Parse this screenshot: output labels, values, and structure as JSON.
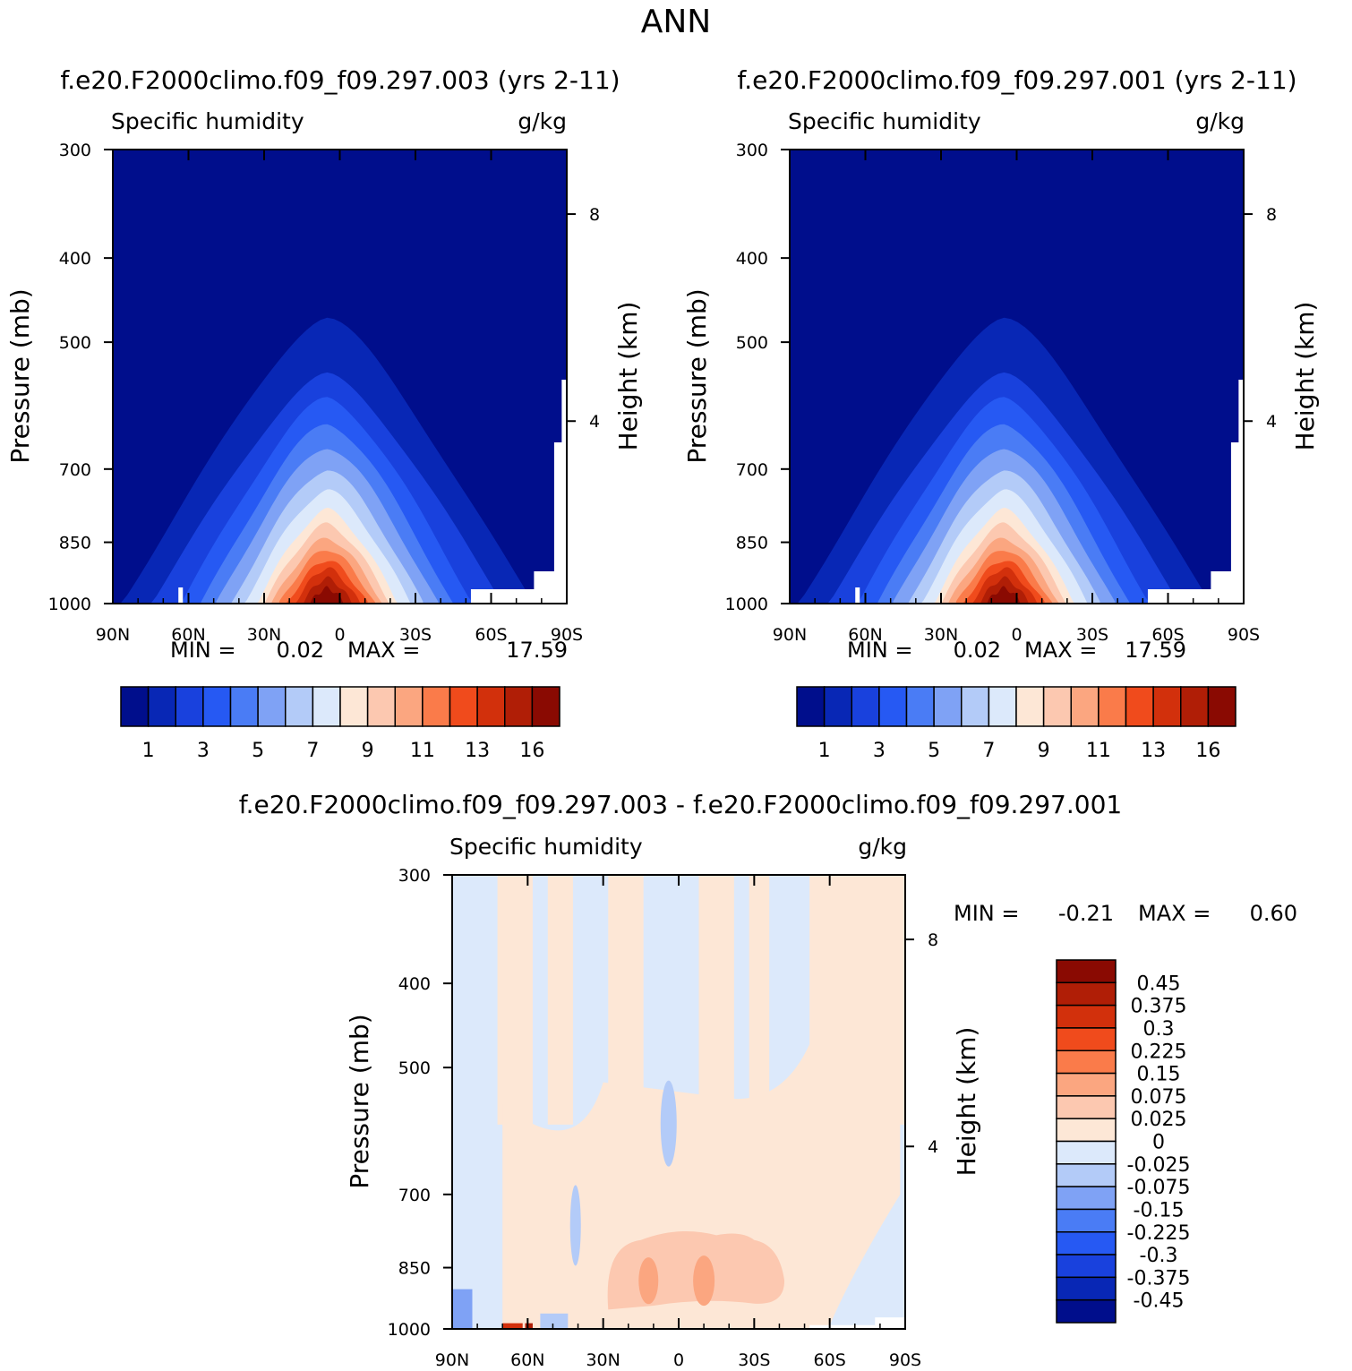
{
  "page_title": "ANN",
  "panels": {
    "left": {
      "case_title": "f.e20.F2000climo.f09_f09.297.003 (yrs 2-11)"
    },
    "right": {
      "case_title": "f.e20.F2000climo.f09_f09.297.001 (yrs 2-11)"
    },
    "diff": {
      "case_title": "f.e20.F2000climo.f09_f09.297.003 - f.e20.F2000climo.f09_f09.297.001"
    }
  },
  "colors": {
    "abs_palette": [
      "#000e8c",
      "#0827b5",
      "#1941dd",
      "#2659f3",
      "#4a7cf5",
      "#7fa2f5",
      "#b3cbf8",
      "#dce9fb",
      "#fde7d6",
      "#fcc8b0",
      "#fba680",
      "#fa7b4a",
      "#f04b1c",
      "#d2300c",
      "#b01e06",
      "#8a0a02"
    ],
    "diff_palette": [
      "#000e8c",
      "#0827b5",
      "#1941dd",
      "#2659f3",
      "#4a7cf5",
      "#7fa2f5",
      "#b3cbf8",
      "#dce9fb",
      "#fde7d6",
      "#fcc8b0",
      "#fba680",
      "#fa7b4a",
      "#f04b1c",
      "#d2300c",
      "#b01e06",
      "#8a0a02"
    ]
  },
  "chart_data": [
    {
      "type": "contour",
      "id": "left",
      "title": "Specific humidity",
      "units": "g/kg",
      "ylabel": "Pressure (mb)",
      "y2label": "Height (km)",
      "x": [
        "90N",
        "60N",
        "30N",
        "0",
        "30S",
        "60S",
        "90S"
      ],
      "y": [
        "300",
        "400",
        "500",
        "700",
        "850",
        "1000"
      ],
      "y2": [
        "8",
        "4"
      ],
      "ylim": [
        300,
        1000
      ],
      "stats": {
        "min_label": "MIN =",
        "min": "0.02",
        "max_label": "MAX =",
        "max": "17.59"
      },
      "colorbar_labels": [
        "1",
        "3",
        "5",
        "7",
        "9",
        "11",
        "13",
        "16"
      ],
      "contour_tops_mb": [
        null,
        470,
        545,
        580,
        620,
        660,
        700,
        740,
        780,
        810,
        840,
        865,
        890,
        910,
        935,
        960
      ],
      "contour_half_width_deg": [
        null,
        82,
        70,
        58,
        50,
        44,
        38,
        33,
        28,
        25,
        22,
        19,
        16,
        13,
        10,
        7
      ]
    },
    {
      "type": "contour",
      "id": "right",
      "title": "Specific humidity",
      "units": "g/kg",
      "ylabel": "Pressure (mb)",
      "y2label": "Height (km)",
      "x": [
        "90N",
        "60N",
        "30N",
        "0",
        "30S",
        "60S",
        "90S"
      ],
      "y": [
        "300",
        "400",
        "500",
        "700",
        "850",
        "1000"
      ],
      "y2": [
        "8",
        "4"
      ],
      "ylim": [
        300,
        1000
      ],
      "stats": {
        "min_label": "MIN =",
        "min": "0.02",
        "max_label": "MAX =",
        "max": "17.59"
      },
      "colorbar_labels": [
        "1",
        "3",
        "5",
        "7",
        "9",
        "11",
        "13",
        "16"
      ]
    },
    {
      "type": "contour",
      "id": "diff",
      "title": "Specific humidity",
      "units": "g/kg",
      "ylabel": "Pressure (mb)",
      "y2label": "Height (km)",
      "x": [
        "90N",
        "60N",
        "30N",
        "0",
        "30S",
        "60S",
        "90S"
      ],
      "y": [
        "300",
        "400",
        "500",
        "700",
        "850",
        "1000"
      ],
      "y2": [
        "8",
        "4"
      ],
      "ylim": [
        300,
        1000
      ],
      "stats": {
        "min_label": "MIN =",
        "min": "-0.21",
        "max_label": "MAX =",
        "max": "0.60"
      },
      "colorbar_labels": [
        "0.45",
        "0.375",
        "0.3",
        "0.225",
        "0.15",
        "0.075",
        "0.025",
        "0",
        "-0.025",
        "-0.075",
        "-0.15",
        "-0.225",
        "-0.3",
        "-0.375",
        "-0.45"
      ]
    }
  ]
}
